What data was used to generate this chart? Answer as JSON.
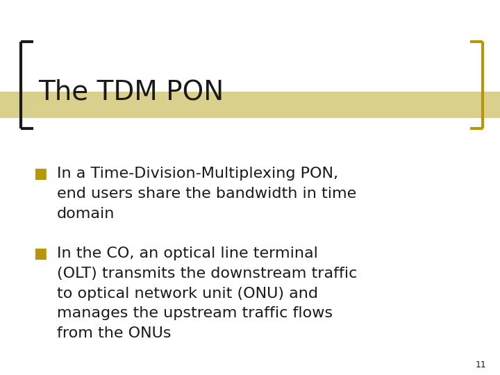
{
  "title": "The TDM PON",
  "title_fontsize": 28,
  "title_color": "#1a1a1a",
  "background_color": "#ffffff",
  "bracket_color_left": "#1a1a1a",
  "bracket_color_right": "#b8960c",
  "title_band_color": "#d4c87a",
  "bullet_color": "#b8960c",
  "text_color": "#1a1a1a",
  "bullet1_lines": [
    "In a Time-Division-Multiplexing PON,",
    "end users share the bandwidth in time",
    "domain"
  ],
  "bullet2_lines": [
    "In the CO, an optical line terminal",
    "(OLT) transmits the downstream traffic",
    "to optical network unit (ONU) and",
    "manages the upstream traffic flows",
    "from the ONUs"
  ],
  "page_number": "11",
  "body_fontsize": 16,
  "body_color": "#1a1a1a"
}
